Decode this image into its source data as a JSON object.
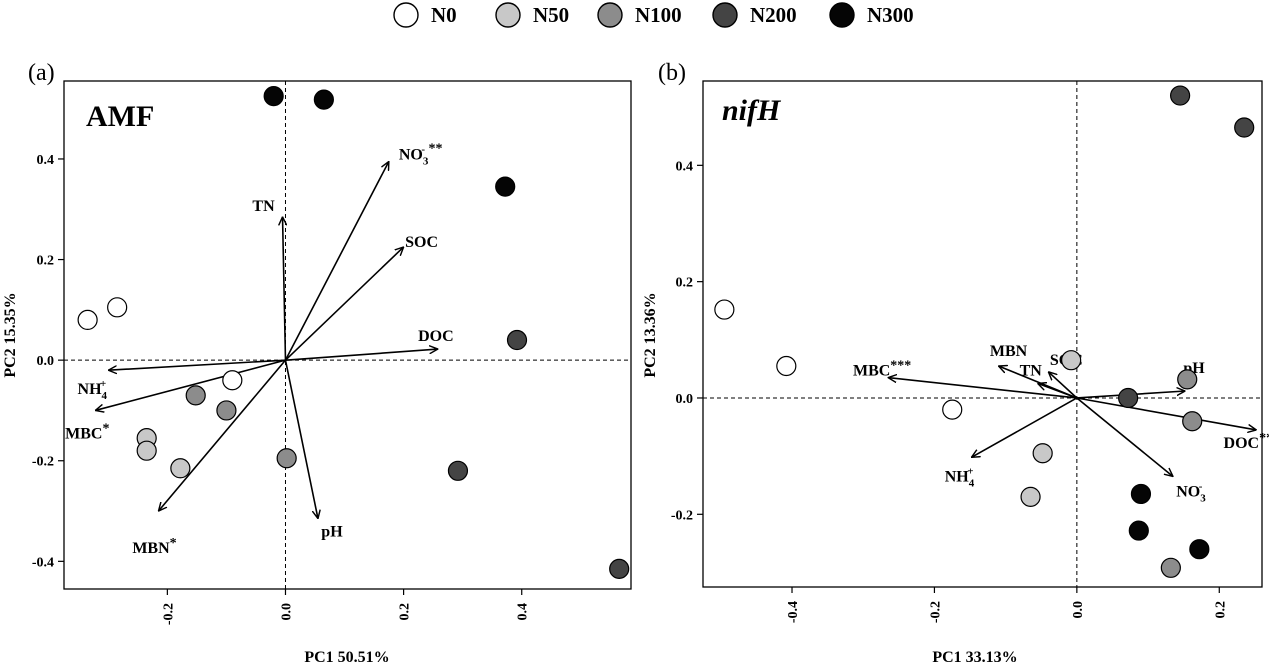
{
  "legend": {
    "items": [
      {
        "label": "N0",
        "color": "#ffffff"
      },
      {
        "label": "N50",
        "color": "#c8c8c8"
      },
      {
        "label": "N100",
        "color": "#8c8c8c"
      },
      {
        "label": "N200",
        "color": "#444444"
      },
      {
        "label": "N300",
        "color": "#050505"
      }
    ]
  },
  "chart_data": [
    {
      "type": "scatter",
      "subtype": "pca-biplot",
      "panel_label": "(a)",
      "title": "AMF",
      "xlabel": "PC1  50.51%",
      "ylabel": "PC2  15.35%",
      "xlim": [
        -0.375,
        0.585
      ],
      "ylim": [
        -0.455,
        0.555
      ],
      "xticks": [
        -0.2,
        0.0,
        0.2,
        0.4
      ],
      "xtick_labels": [
        "-0.2",
        "0.0",
        "0.2",
        "0.4"
      ],
      "yticks": [
        -0.4,
        -0.2,
        0.0,
        0.2,
        0.4
      ],
      "ytick_labels": [
        "-0.4",
        "-0.2",
        "0.0",
        "0.2",
        "0.4"
      ],
      "points": [
        {
          "group": "N0",
          "x": -0.335,
          "y": 0.08
        },
        {
          "group": "N0",
          "x": -0.285,
          "y": 0.105
        },
        {
          "group": "N0",
          "x": -0.09,
          "y": -0.04
        },
        {
          "group": "N50",
          "x": -0.235,
          "y": -0.155
        },
        {
          "group": "N50",
          "x": -0.235,
          "y": -0.18
        },
        {
          "group": "N50",
          "x": -0.178,
          "y": -0.215
        },
        {
          "group": "N100",
          "x": -0.152,
          "y": -0.07
        },
        {
          "group": "N100",
          "x": -0.1,
          "y": -0.1
        },
        {
          "group": "N100",
          "x": 0.002,
          "y": -0.195
        },
        {
          "group": "N200",
          "x": 0.392,
          "y": 0.04
        },
        {
          "group": "N200",
          "x": 0.292,
          "y": -0.22
        },
        {
          "group": "N200",
          "x": 0.565,
          "y": -0.415
        },
        {
          "group": "N300",
          "x": -0.02,
          "y": 0.525
        },
        {
          "group": "N300",
          "x": 0.065,
          "y": 0.518
        },
        {
          "group": "N300",
          "x": 0.372,
          "y": 0.345
        }
      ],
      "vectors": [
        {
          "label": "NO",
          "sub": "3",
          "sup": "-",
          "stars": " **",
          "x": 0.175,
          "y": 0.395
        },
        {
          "label": "TN",
          "sub": "",
          "sup": "",
          "stars": "",
          "x": -0.005,
          "y": 0.285
        },
        {
          "label": "SOC",
          "sub": "",
          "sup": "",
          "stars": "",
          "x": 0.2,
          "y": 0.225
        },
        {
          "label": "DOC",
          "sub": "",
          "sup": "",
          "stars": "",
          "x": 0.258,
          "y": 0.022
        },
        {
          "label": "NH",
          "sub": "4",
          "sup": "+",
          "stars": "",
          "x": -0.3,
          "y": -0.02
        },
        {
          "label": "MBC",
          "sub": "",
          "sup": "",
          "stars": "*",
          "x": -0.322,
          "y": -0.1
        },
        {
          "label": "MBN",
          "sub": "",
          "sup": "",
          "stars": "*",
          "x": -0.215,
          "y": -0.3
        },
        {
          "label": "pH",
          "sub": "",
          "sup": "",
          "stars": "",
          "x": 0.055,
          "y": -0.315
        }
      ]
    },
    {
      "type": "scatter",
      "subtype": "pca-biplot",
      "panel_label": "(b)",
      "title": "nifH",
      "xlabel": "PC1  33.13%",
      "ylabel": "PC2  13.36%",
      "xlim": [
        -0.525,
        0.26
      ],
      "ylim": [
        -0.325,
        0.545
      ],
      "xticks": [
        -0.4,
        -0.2,
        0.0,
        0.2
      ],
      "xtick_labels": [
        "-0.4",
        "-0.2",
        "0.0",
        "0.2"
      ],
      "yticks": [
        -0.2,
        0.0,
        0.2,
        0.4
      ],
      "ytick_labels": [
        "-0.2",
        "0.0",
        "0.2",
        "0.4"
      ],
      "points": [
        {
          "group": "N0",
          "x": -0.495,
          "y": 0.152
        },
        {
          "group": "N0",
          "x": -0.408,
          "y": 0.055
        },
        {
          "group": "N0",
          "x": -0.175,
          "y": -0.02
        },
        {
          "group": "N50",
          "x": -0.008,
          "y": 0.065
        },
        {
          "group": "N50",
          "x": -0.048,
          "y": -0.095
        },
        {
          "group": "N50",
          "x": -0.065,
          "y": -0.17
        },
        {
          "group": "N100",
          "x": 0.155,
          "y": 0.032
        },
        {
          "group": "N100",
          "x": 0.162,
          "y": -0.04
        },
        {
          "group": "N100",
          "x": 0.132,
          "y": -0.292
        },
        {
          "group": "N200",
          "x": 0.145,
          "y": 0.52
        },
        {
          "group": "N200",
          "x": 0.235,
          "y": 0.465
        },
        {
          "group": "N200",
          "x": 0.072,
          "y": 0.0
        },
        {
          "group": "N300",
          "x": 0.09,
          "y": -0.165
        },
        {
          "group": "N300",
          "x": 0.087,
          "y": -0.228
        },
        {
          "group": "N300",
          "x": 0.172,
          "y": -0.26
        }
      ],
      "vectors": [
        {
          "label": "MBC",
          "sub": "",
          "sup": "",
          "stars": "***",
          "x": -0.265,
          "y": 0.035
        },
        {
          "label": "MBN",
          "sub": "",
          "sup": "",
          "stars": "",
          "x": -0.11,
          "y": 0.055
        },
        {
          "label": "TN",
          "sub": "",
          "sup": "",
          "stars": "",
          "x": -0.055,
          "y": 0.025
        },
        {
          "label": "SOC",
          "sub": "",
          "sup": "",
          "stars": "",
          "x": -0.04,
          "y": 0.045
        },
        {
          "label": "pH",
          "sub": "",
          "sup": "",
          "stars": "",
          "x": 0.152,
          "y": 0.012
        },
        {
          "label": "DOC",
          "sub": "",
          "sup": "",
          "stars": "**",
          "x": 0.252,
          "y": -0.055
        },
        {
          "label": "NO",
          "sub": "3",
          "sup": "-",
          "stars": "",
          "x": 0.135,
          "y": -0.135
        },
        {
          "label": "NH",
          "sub": "4",
          "sup": "+",
          "stars": "",
          "x": -0.148,
          "y": -0.102
        }
      ]
    }
  ]
}
